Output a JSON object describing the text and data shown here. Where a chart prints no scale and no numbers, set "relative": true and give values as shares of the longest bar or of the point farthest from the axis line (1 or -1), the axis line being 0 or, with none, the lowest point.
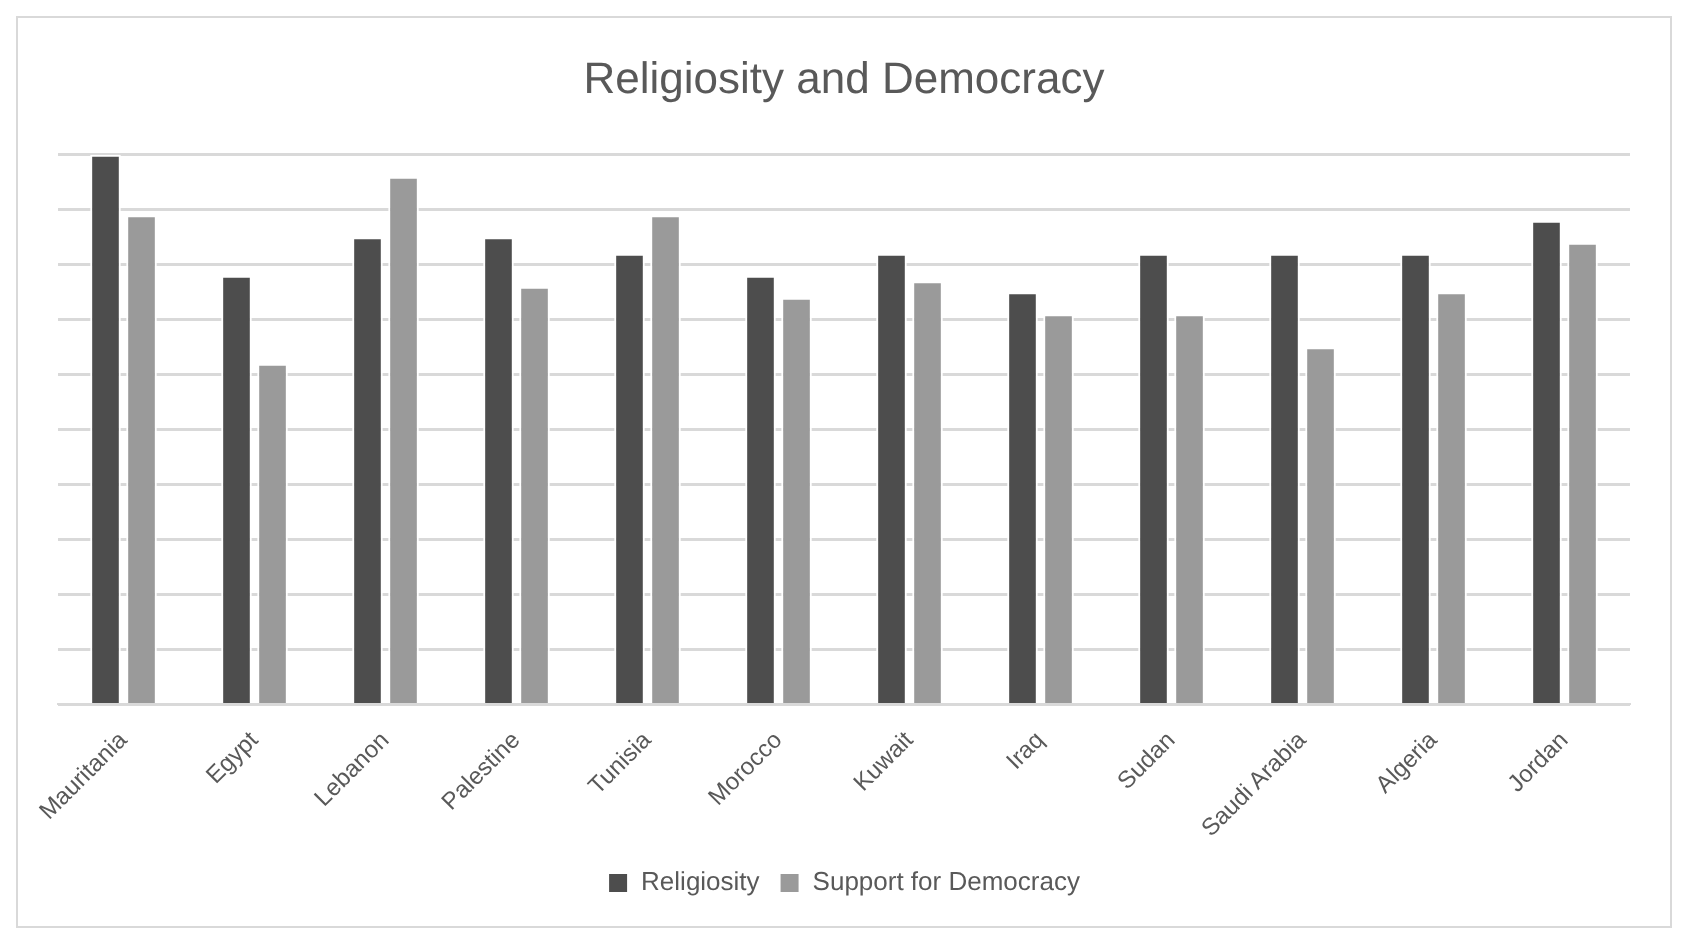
{
  "chart_data": {
    "type": "bar",
    "title": "Religiosity and Democracy",
    "relative": true,
    "grid": "y",
    "legend": "bottom",
    "categories": [
      "Mauritania",
      "Egypt",
      "Lebanon",
      "Palestine",
      "Tunisia",
      "Morocco",
      "Kuwait",
      "Iraq",
      "Sudan",
      "Saudi Arabia",
      "Algeria",
      "Jordan"
    ],
    "series": [
      {
        "name": "Religiosity",
        "color": "#4d4d4d",
        "values": [
          1,
          0.78,
          0.85,
          0.85,
          0.82,
          0.78,
          0.82,
          0.75,
          0.82,
          0.82,
          0.82,
          0.88
        ]
      },
      {
        "name": "Support for Democracy",
        "color": "#9a9a9a",
        "values": [
          0.89,
          0.62,
          0.96,
          0.76,
          0.89,
          0.74,
          0.77,
          0.71,
          0.71,
          0.65,
          0.75,
          0.84
        ]
      }
    ]
  }
}
